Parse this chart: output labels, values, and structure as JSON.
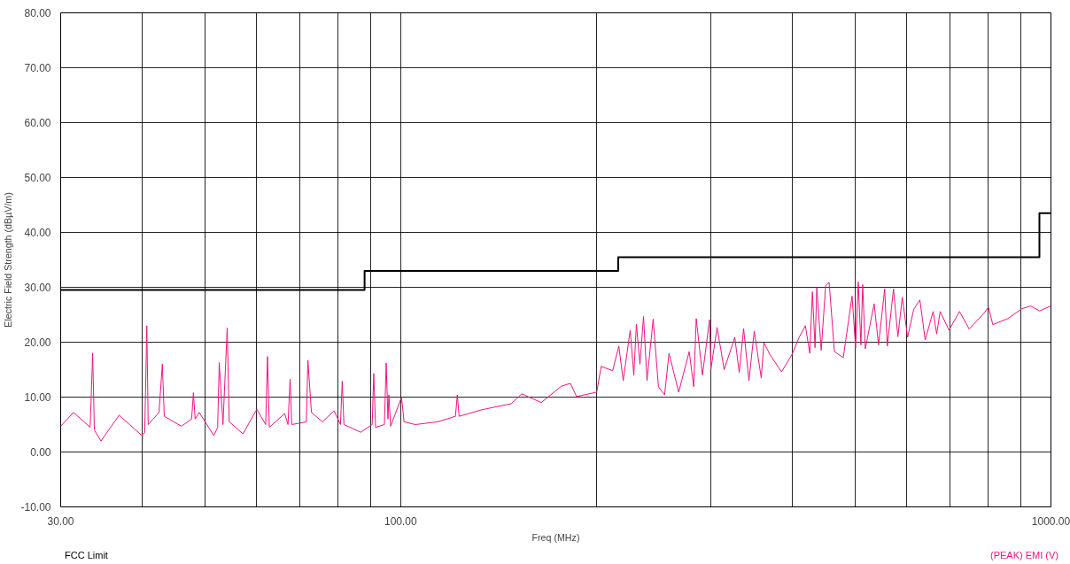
{
  "chart_data": {
    "type": "line",
    "xlabel": "Freq (MHz)",
    "ylabel": "Electric Field Strength (dBµV/m)",
    "log": "x",
    "xlim": [
      30,
      1000
    ],
    "xticks": [
      {
        "value": 30,
        "label": "30.00"
      },
      {
        "value": 40,
        "label": null
      },
      {
        "value": 50,
        "label": null
      },
      {
        "value": 60,
        "label": null
      },
      {
        "value": 70,
        "label": null
      },
      {
        "value": 80,
        "label": null
      },
      {
        "value": 90,
        "label": null
      },
      {
        "value": 100,
        "label": "100.00"
      },
      {
        "value": 200,
        "label": null
      },
      {
        "value": 300,
        "label": null
      },
      {
        "value": 400,
        "label": null
      },
      {
        "value": 500,
        "label": null
      },
      {
        "value": 600,
        "label": null
      },
      {
        "value": 700,
        "label": null
      },
      {
        "value": 800,
        "label": null
      },
      {
        "value": 900,
        "label": null
      },
      {
        "value": 1000,
        "label": "1000.00"
      }
    ],
    "ylim": [
      -10,
      80
    ],
    "yticks": [
      {
        "value": -10,
        "label": "-10.00"
      },
      {
        "value": 0,
        "label": "0.00"
      },
      {
        "value": 10,
        "label": "10.00"
      },
      {
        "value": 20,
        "label": "20.00"
      },
      {
        "value": 30,
        "label": "30.00"
      },
      {
        "value": 40,
        "label": "40.00"
      },
      {
        "value": 50,
        "label": "50.00"
      },
      {
        "value": 60,
        "label": "60.00"
      },
      {
        "value": 70,
        "label": "70.00"
      },
      {
        "value": 80,
        "label": "80.00"
      }
    ],
    "grid": true,
    "line_style": "solid",
    "series": [
      {
        "name": "FCC Limit",
        "type": "step",
        "color": "#000000",
        "x": [
          30,
          88,
          216,
          960,
          1000
        ],
        "values": [
          29.5,
          33,
          35.5,
          43.5,
          43.5
        ]
      },
      {
        "name": "(PEAK) EMI (V)",
        "color": "#f0147f",
        "x": [
          30,
          31.4,
          33.3,
          33.6,
          33.8,
          34.6,
          36.9,
          39.9,
          40.4,
          40.7,
          40.9,
          42.5,
          43.0,
          43.3,
          46.0,
          47.7,
          48.0,
          48.3,
          49.0,
          51.6,
          52.3,
          52.6,
          53.3,
          54.1,
          54.5,
          57.2,
          60.1,
          62.0,
          62.4,
          62.8,
          66.3,
          67.1,
          67.6,
          68.0,
          71.6,
          72.0,
          72.9,
          75.8,
          79.0,
          80.8,
          81.3,
          81.8,
          86.8,
          90.4,
          90.9,
          91.5,
          94.4,
          95.0,
          95.6,
          95.9,
          96.5,
          100.3,
          101.2,
          105.3,
          114.0,
          121.4,
          122.2,
          123.0,
          133.4,
          147.9,
          153.5,
          164.5,
          176.7,
          182.4,
          186.4,
          200.2,
          203.4,
          211.8,
          216.5,
          219.9,
          225.4,
          228.3,
          230.4,
          233.3,
          236.3,
          239.2,
          244.5,
          249.1,
          254.6,
          258.6,
          267.6,
          277.8,
          282.2,
          284.8,
          291.1,
          298.5,
          300.0,
          306.6,
          314.4,
          326.4,
          331.6,
          336.8,
          343.2,
          349.7,
          358.5,
          361.9,
          369.9,
          385.2,
          399.9,
          410.0,
          419.1,
          425.7,
          429.7,
          433.7,
          436.4,
          443.3,
          450.3,
          455.9,
          464.5,
          479.3,
          494.5,
          500.7,
          505.4,
          510.2,
          513.4,
          518.2,
          534.7,
          543.1,
          555.0,
          560.2,
          572.6,
          581.6,
          590.7,
          601.9,
          615.2,
          628.7,
          640.6,
          658.9,
          667.2,
          675.5,
          696.9,
          723.4,
          748.6,
          789.0,
          801.4,
          814.0,
          858.3,
          902.3,
          931.0,
          960.4,
          1000
        ],
        "values": [
          4.7,
          7.2,
          4.5,
          18,
          4,
          2,
          6.7,
          3.1,
          3.5,
          23,
          5,
          7.2,
          16,
          6.5,
          4.7,
          6,
          10.8,
          6,
          7.2,
          3,
          4.5,
          16.3,
          5,
          22.6,
          5.5,
          3.3,
          7.8,
          5,
          17.4,
          4.5,
          7,
          5,
          13.3,
          5,
          5.5,
          16.7,
          7.2,
          5.5,
          7.5,
          5,
          12.9,
          5,
          3.6,
          5,
          14.3,
          4.5,
          5,
          16.2,
          6,
          10.4,
          4.7,
          10,
          5.5,
          5,
          5.5,
          6.5,
          10.4,
          6.5,
          7.7,
          8.8,
          10.6,
          9,
          12,
          12.5,
          10.1,
          10.9,
          15.6,
          14.8,
          19.3,
          13,
          22.2,
          14,
          23.3,
          16,
          24.7,
          13,
          24.2,
          11.9,
          10.4,
          18,
          10.9,
          18.3,
          11.9,
          24.3,
          14,
          24.1,
          15.1,
          22.7,
          15,
          20.9,
          14.5,
          22.5,
          13,
          22,
          13.5,
          19.9,
          17.7,
          14.6,
          17.8,
          20.9,
          23,
          18,
          29.2,
          19,
          30,
          18.5,
          30.3,
          30.9,
          18.3,
          17.2,
          28.4,
          19,
          31,
          19.5,
          30.5,
          18.8,
          27,
          19.5,
          29.7,
          19.3,
          29.7,
          21,
          28.2,
          20.9,
          26,
          27.7,
          20.4,
          25.6,
          21.5,
          25.6,
          22.2,
          25.6,
          22.4,
          25.3,
          26.4,
          23.2,
          24.3,
          26.1,
          26.6,
          25.7,
          26.6
        ]
      }
    ]
  }
}
